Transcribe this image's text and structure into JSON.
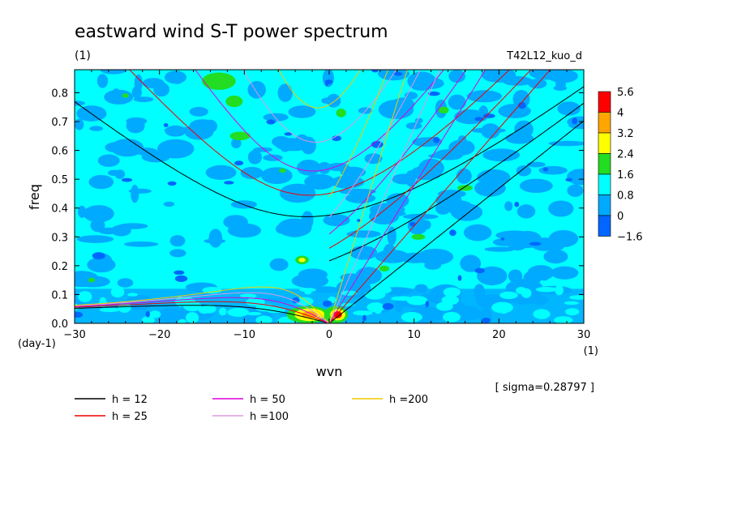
{
  "header": {
    "title": "eastward wind S-T power spectrum",
    "unit": "(1)",
    "run": "T42L12_kuo_d"
  },
  "chart_data": {
    "type": "heatmap",
    "xlabel": "wvn",
    "ylabel": "freq",
    "x_unit": "(1)",
    "y_unit": "(day-1)",
    "xlim": [
      -30,
      30
    ],
    "ylim": [
      0,
      0.88
    ],
    "x_ticks": [
      "−30",
      "−20",
      "−10",
      "0",
      "10",
      "20",
      "30"
    ],
    "y_ticks": [
      "0.0",
      "0.1",
      "0.2",
      "0.3",
      "0.4",
      "0.5",
      "0.6",
      "0.7",
      "0.8"
    ],
    "colorbar": {
      "levels": [
        "5.6",
        "4",
        "3.2",
        "2.4",
        "1.6",
        "0.8",
        "0",
        "−1.6"
      ],
      "colors": [
        "#ff0000",
        "#ffa500",
        "#ffff00",
        "#22dd22",
        "#00ffff",
        "#00aaff",
        "#0066ff"
      ]
    },
    "sigma_note": "[ sigma=0.28797 ]",
    "series": [
      {
        "name": "h = 12",
        "h": 12,
        "color": "#000000"
      },
      {
        "name": "h = 25",
        "h": 25,
        "color": "#ee0000"
      },
      {
        "name": "h = 50",
        "h": 50,
        "color": "#dd00dd"
      },
      {
        "name": "h =100",
        "h": 100,
        "color": "#dd99dd"
      },
      {
        "name": "h =200",
        "h": 200,
        "color": "#eecc00"
      }
    ]
  }
}
